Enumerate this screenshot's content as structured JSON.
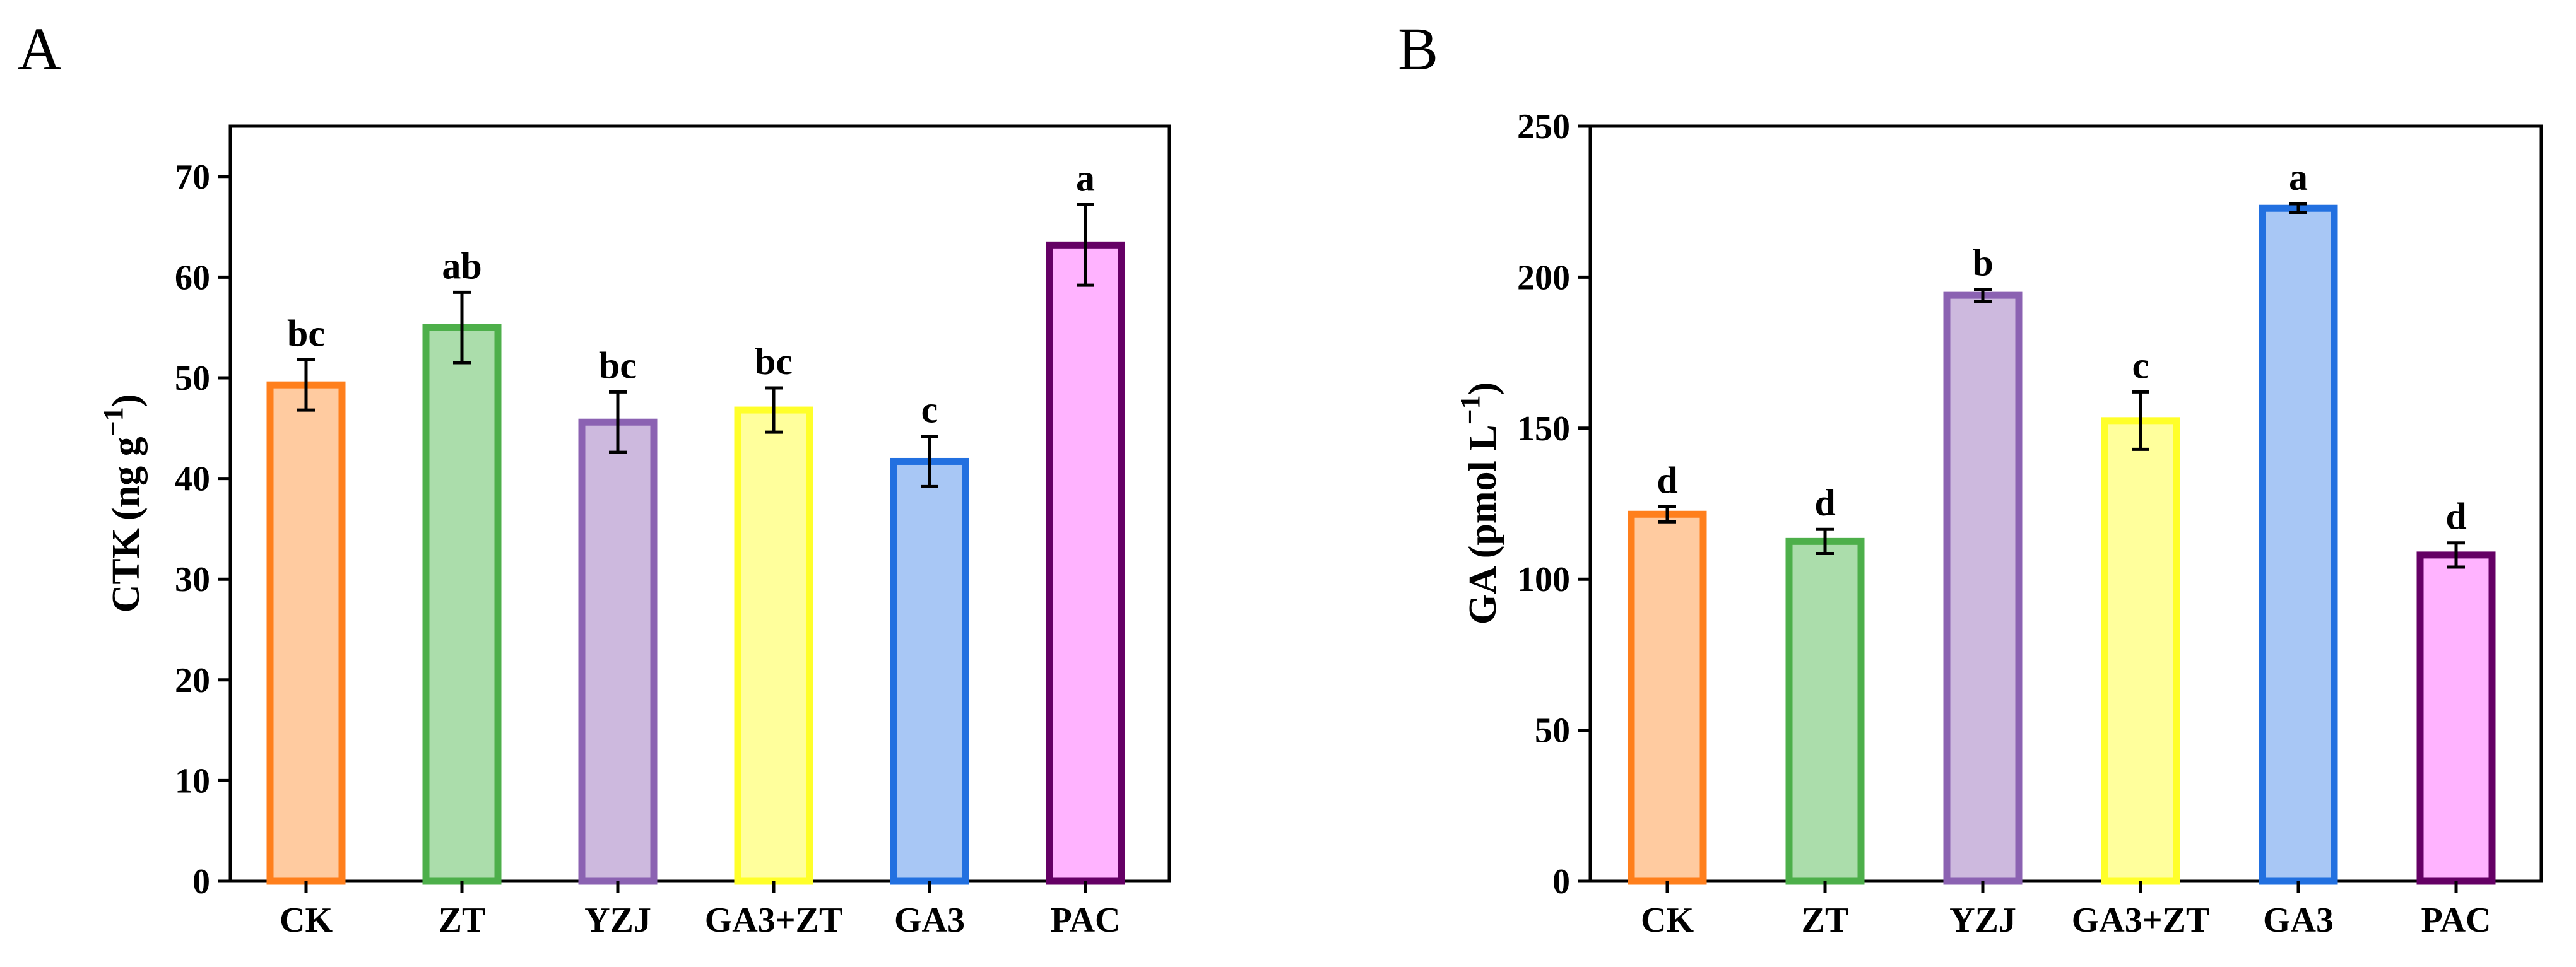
{
  "chart_data": [
    {
      "type": "bar",
      "panel": "A",
      "categories": [
        "CK",
        "ZT",
        "YZJ",
        "GA3+ZT",
        "GA3",
        "PAC"
      ],
      "values": [
        49.3,
        55.0,
        45.6,
        46.8,
        41.7,
        63.2
      ],
      "errors": [
        2.5,
        3.5,
        3.0,
        2.2,
        2.5,
        4.0
      ],
      "significance": [
        "bc",
        "ab",
        "bc",
        "bc",
        "c",
        "a"
      ],
      "ylabel_main": "CTK",
      "ylabel_units": "(ng g",
      "ylabel_sup": "−1",
      "ylabel_close": ")",
      "ylim": [
        0,
        75
      ],
      "yticks": [
        0,
        10,
        20,
        30,
        40,
        50,
        60,
        70
      ],
      "xlabel": ""
    },
    {
      "type": "bar",
      "panel": "B",
      "categories": [
        "CK",
        "ZT",
        "YZJ",
        "GA3+ZT",
        "GA3",
        "PAC"
      ],
      "values": [
        121.5,
        112.5,
        194.0,
        152.5,
        222.8,
        108.0
      ],
      "errors": [
        2.5,
        4.0,
        2.0,
        9.5,
        1.5,
        4.0
      ],
      "significance": [
        "d",
        "d",
        "b",
        "c",
        "a",
        "d"
      ],
      "ylabel_main": "GA",
      "ylabel_units": "(pmol L",
      "ylabel_sup": "−1",
      "ylabel_close": ")",
      "ylim": [
        0,
        250
      ],
      "yticks": [
        0,
        50,
        100,
        150,
        200,
        250
      ],
      "xlabel": ""
    }
  ],
  "series_colors": {
    "fill": [
      "#FFCBA0",
      "#ABDDAB",
      "#CDB9DE",
      "#FFFF9C",
      "#A8C7F5",
      "#FFB3FF"
    ],
    "stroke": [
      "#FF7F1C",
      "#4DAF4A",
      "#8B62B2",
      "#FFFF2A",
      "#2270E0",
      "#650065"
    ]
  }
}
